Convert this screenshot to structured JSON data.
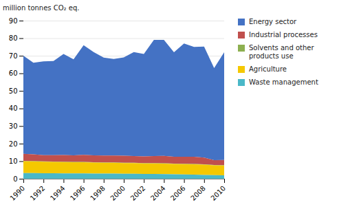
{
  "chart_data": {
    "type": "area",
    "stacked": true,
    "ylabel": "million tonnes CO₂ eq.",
    "x": [
      1990,
      1991,
      1992,
      1993,
      1994,
      1995,
      1996,
      1997,
      1998,
      1999,
      2000,
      2001,
      2002,
      2003,
      2004,
      2005,
      2006,
      2007,
      2008,
      2009,
      2010
    ],
    "series": [
      {
        "name": "Energy sector",
        "color": "#4472c4",
        "values": [
          55.8,
          52.1,
          53.4,
          53.6,
          57.5,
          54.7,
          62.4,
          58.8,
          55.8,
          55.0,
          56.0,
          59.2,
          58.3,
          66.1,
          66.0,
          59.5,
          64.5,
          62.5,
          63.2,
          52.4,
          61.3
        ]
      },
      {
        "name": "Industrial processes",
        "color": "#c0504d",
        "values": [
          4.0,
          3.8,
          3.5,
          3.6,
          3.8,
          3.7,
          4.0,
          3.9,
          3.9,
          3.9,
          4.0,
          3.8,
          3.8,
          4.0,
          4.2,
          3.9,
          4.0,
          4.1,
          3.8,
          2.8,
          3.0
        ]
      },
      {
        "name": "Solvents and other\nproducts use",
        "color": "#8db050",
        "values": [
          0.2,
          0.2,
          0.2,
          0.2,
          0.2,
          0.2,
          0.2,
          0.2,
          0.2,
          0.2,
          0.2,
          0.2,
          0.2,
          0.2,
          0.2,
          0.2,
          0.2,
          0.2,
          0.2,
          0.2,
          0.2
        ]
      },
      {
        "name": "Agriculture",
        "color": "#f5c800",
        "values": [
          6.8,
          6.7,
          6.6,
          6.5,
          6.5,
          6.4,
          6.4,
          6.3,
          6.2,
          6.2,
          6.1,
          6.1,
          6.0,
          6.0,
          6.0,
          5.9,
          5.9,
          5.9,
          5.8,
          5.5,
          5.5
        ]
      },
      {
        "name": "Waste management",
        "color": "#4ab8c8",
        "values": [
          3.2,
          3.2,
          3.1,
          3.1,
          3.0,
          3.0,
          3.0,
          2.9,
          2.9,
          2.9,
          2.8,
          2.8,
          2.7,
          2.7,
          2.6,
          2.5,
          2.4,
          2.3,
          2.2,
          2.1,
          2.0
        ]
      }
    ],
    "xlim": [
      1990,
      2010
    ],
    "xticks": [
      1990,
      1992,
      1994,
      1996,
      1998,
      2000,
      2002,
      2004,
      2006,
      2008,
      2010
    ],
    "ylim": [
      0,
      90
    ],
    "yticks": [
      0,
      10,
      20,
      30,
      40,
      50,
      60,
      70,
      80,
      90
    ],
    "grid": true,
    "legend": "right"
  }
}
